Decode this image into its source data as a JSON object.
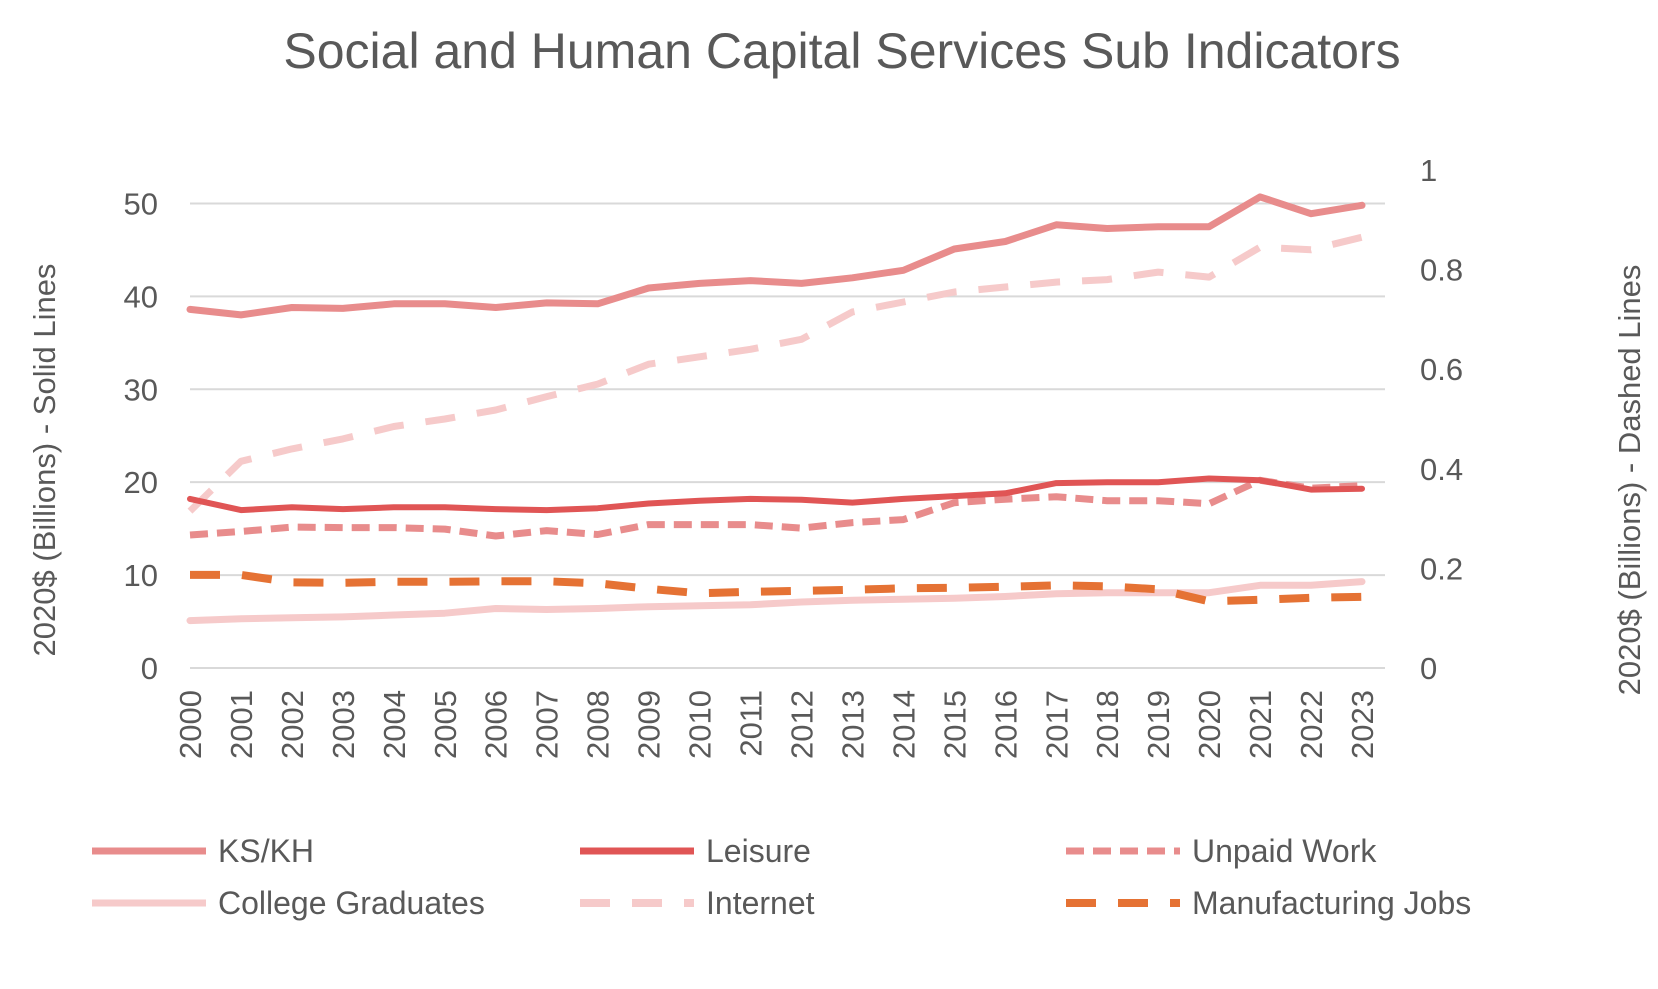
{
  "chart_data": {
    "type": "line",
    "title": "Social and Human Capital Services Sub Indicators",
    "x": [
      "2000",
      "2001",
      "2002",
      "2003",
      "2004",
      "2005",
      "2006",
      "2007",
      "2008",
      "2009",
      "2010",
      "2011",
      "2012",
      "2013",
      "2014",
      "2015",
      "2016",
      "2017",
      "2018",
      "2019",
      "2020",
      "2021",
      "2022",
      "2023"
    ],
    "y_left_label": "2020$ (Billions) - Solid Lines",
    "y_right_label": "2020$ (Billions) - Dashed Lines",
    "y_left_range": [
      0,
      50
    ],
    "y_left_ticks": [
      "0",
      "10",
      "20",
      "30",
      "40",
      "50"
    ],
    "y_right_range": [
      0,
      1
    ],
    "y_right_ticks": [
      "0",
      "0.2",
      "0.4",
      "0.6",
      "0.8",
      "1"
    ],
    "grid": true,
    "legend_position": "bottom",
    "series": [
      {
        "name": "KS/KH",
        "axis": "left",
        "style": "solid",
        "color": "#E88C8C",
        "values": [
          38.6,
          38.0,
          38.8,
          38.7,
          39.2,
          39.2,
          38.8,
          39.3,
          39.2,
          40.9,
          41.4,
          41.7,
          41.4,
          42.0,
          42.8,
          45.1,
          45.9,
          47.7,
          47.3,
          47.5,
          47.5,
          50.7,
          48.9,
          49.8
        ]
      },
      {
        "name": "Leisure",
        "axis": "left",
        "style": "solid",
        "color": "#E05555",
        "values": [
          18.2,
          17.0,
          17.3,
          17.1,
          17.3,
          17.3,
          17.1,
          17.0,
          17.2,
          17.7,
          18.0,
          18.2,
          18.1,
          17.8,
          18.2,
          18.5,
          18.8,
          19.9,
          20.0,
          20.0,
          20.4,
          20.2,
          19.2,
          19.3
        ]
      },
      {
        "name": "Unpaid Work",
        "axis": "right",
        "style": "dashed",
        "color": "#E88C8C",
        "values": [
          0.267,
          0.274,
          0.283,
          0.282,
          0.282,
          0.279,
          0.265,
          0.276,
          0.268,
          0.288,
          0.288,
          0.288,
          0.281,
          0.292,
          0.298,
          0.332,
          0.339,
          0.344,
          0.336,
          0.336,
          0.33,
          0.377,
          0.361,
          0.366
        ]
      },
      {
        "name": "College Graduates",
        "axis": "left",
        "style": "solid",
        "color": "#F6CACA",
        "values": [
          5.1,
          5.3,
          5.4,
          5.5,
          5.7,
          5.9,
          6.4,
          6.3,
          6.4,
          6.6,
          6.7,
          6.8,
          7.1,
          7.3,
          7.4,
          7.5,
          7.7,
          8.0,
          8.1,
          8.1,
          8.1,
          8.9,
          8.9,
          9.3
        ]
      },
      {
        "name": "Internet",
        "axis": "right",
        "style": "dashed",
        "color": "#F6CACA",
        "values": [
          0.315,
          0.415,
          0.44,
          0.46,
          0.485,
          0.5,
          0.518,
          0.545,
          0.57,
          0.61,
          0.625,
          0.64,
          0.66,
          0.715,
          0.735,
          0.755,
          0.765,
          0.775,
          0.78,
          0.795,
          0.785,
          0.845,
          0.84,
          0.865
        ]
      },
      {
        "name": "Manufacturing Jobs",
        "axis": "right",
        "style": "dashed",
        "color": "#E57234",
        "values": [
          0.187,
          0.187,
          0.172,
          0.171,
          0.173,
          0.173,
          0.174,
          0.174,
          0.17,
          0.159,
          0.15,
          0.153,
          0.155,
          0.157,
          0.16,
          0.161,
          0.163,
          0.166,
          0.164,
          0.158,
          0.134,
          0.137,
          0.141,
          0.143
        ]
      }
    ]
  }
}
